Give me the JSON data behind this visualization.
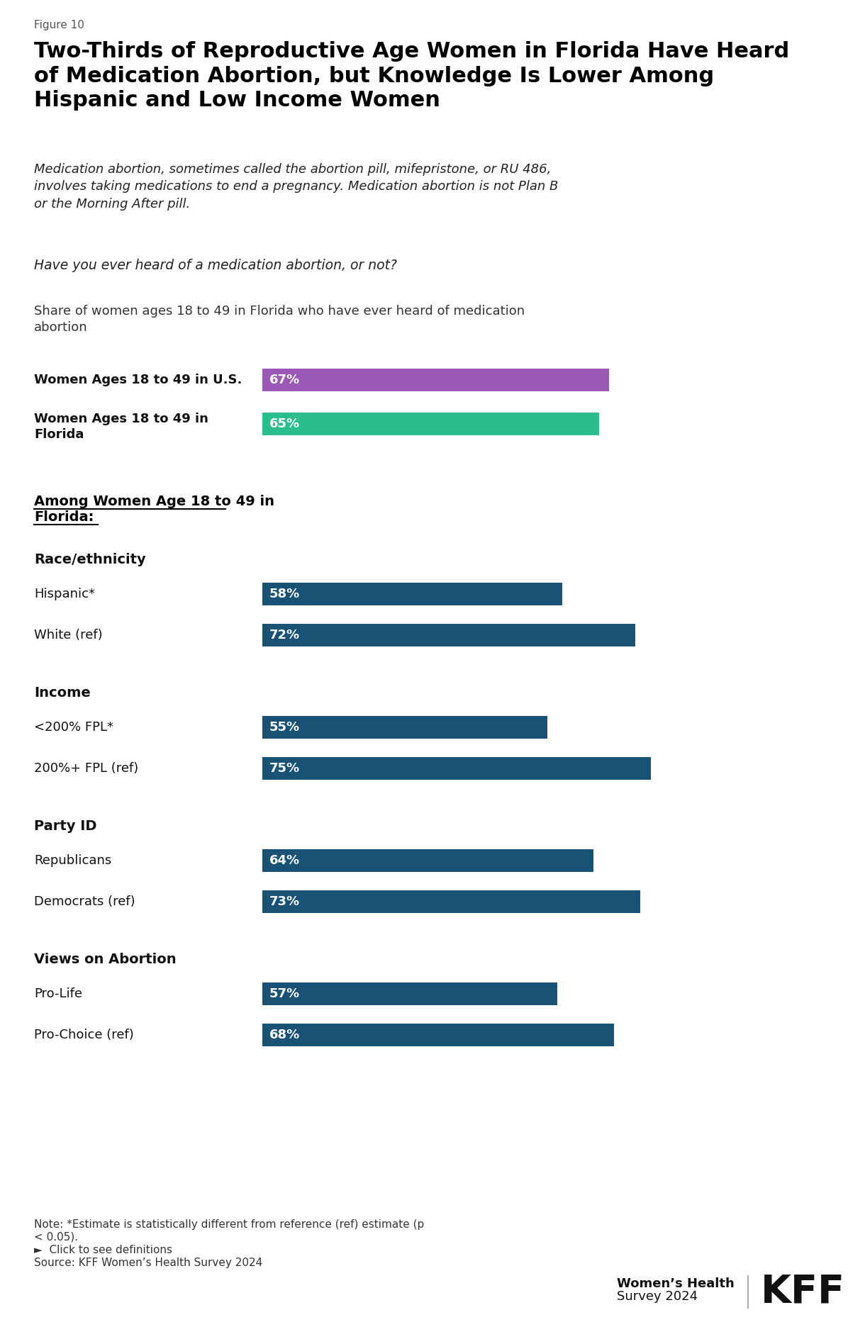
{
  "figure_label": "Figure 10",
  "title": "Two-Thirds of Reproductive Age Women in Florida Have Heard\nof Medication Abortion, but Knowledge Is Lower Among\nHispanic and Low Income Women",
  "subtitle_italic": "Medication abortion, sometimes called the abortion pill, mifepristone, or RU 486,\ninvolves taking medications to end a pregnancy. Medication abortion is not Plan B\nor the Morning After pill.",
  "question": "Have you ever heard of a medication abortion, or not?",
  "share_label": "Share of women ages 18 to 49 in Florida who have ever heard of medication\nabortion",
  "top_bars": [
    {
      "label": "Women Ages 18 to 49 in U.S.",
      "value": 67,
      "color": "#9b59b6",
      "label_multiline": false
    },
    {
      "label": "Women Ages 18 to 49 in\nFlorida",
      "value": 65,
      "color": "#2bbd8e",
      "label_multiline": true
    }
  ],
  "section_header_line1": "Among Women Age 18 to 49 in",
  "section_header_line2": "Florida:",
  "groups": [
    {
      "group_label": "Race/ethnicity",
      "bars": [
        {
          "label": "Hispanic*",
          "value": 58,
          "color": "#1a5276"
        },
        {
          "label": "White (ref)",
          "value": 72,
          "color": "#1a5276"
        }
      ]
    },
    {
      "group_label": "Income",
      "bars": [
        {
          "label": "<200% FPL*",
          "value": 55,
          "color": "#1a5276"
        },
        {
          "label": "200%+ FPL (ref)",
          "value": 75,
          "color": "#1a5276"
        }
      ]
    },
    {
      "group_label": "Party ID",
      "bars": [
        {
          "label": "Republicans",
          "value": 64,
          "color": "#1a5276"
        },
        {
          "label": "Democrats (ref)",
          "value": 73,
          "color": "#1a5276"
        }
      ]
    },
    {
      "group_label": "Views on Abortion",
      "bars": [
        {
          "label": "Pro-Life",
          "value": 57,
          "color": "#1a5276"
        },
        {
          "label": "Pro-Choice (ref)",
          "value": 68,
          "color": "#1a5276"
        }
      ]
    }
  ],
  "note_line1": "Note: *Estimate is statistically different from reference (ref) estimate (p",
  "note_line2": "< 0.05).",
  "click_text": "►  Click to see definitions",
  "source": "Source: KFF Women’s Health Survey 2024",
  "footer_brand_line1": "Women’s Health",
  "footer_brand_line2": "Survey 2024",
  "footer_kff": "KFF",
  "background_color": "#ffffff"
}
